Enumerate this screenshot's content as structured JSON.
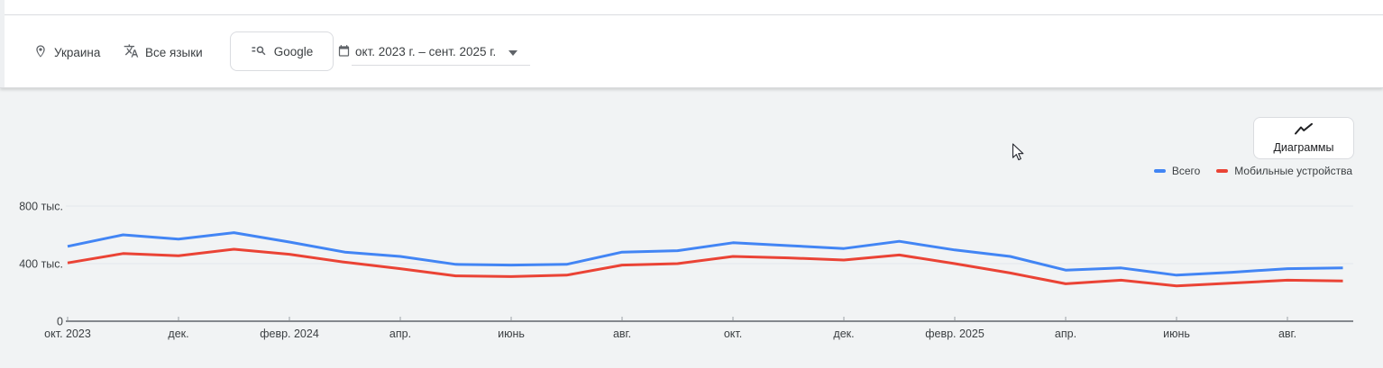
{
  "toolbar": {
    "location_label": "Украина",
    "language_label": "Все языки",
    "search_engine_label": "Google",
    "date_range_label": "окт. 2023 г. – сент. 2025 г."
  },
  "chart_section": {
    "charts_button_label": "Диаграммы",
    "legend": [
      {
        "label": "Всего",
        "color": "#4285f4"
      },
      {
        "label": "Мобильные устройства",
        "color": "#ea4335"
      }
    ]
  },
  "chart_data": {
    "type": "line",
    "title": "",
    "xlabel": "",
    "ylabel": "",
    "values_unit": "thousands (тыс.)",
    "ylim": [
      0,
      800
    ],
    "grid": "horizontal",
    "legend_position": "top-right",
    "x": [
      "2023-10",
      "2023-11",
      "2023-12",
      "2024-01",
      "2024-02",
      "2024-03",
      "2024-04",
      "2024-05",
      "2024-06",
      "2024-07",
      "2024-08",
      "2024-09",
      "2024-10",
      "2024-11",
      "2024-12",
      "2025-01",
      "2025-02",
      "2025-03",
      "2025-04",
      "2025-05",
      "2025-06",
      "2025-07",
      "2025-08",
      "2025-09"
    ],
    "x_tick_every": 2,
    "x_tick_labels": [
      "окт. 2023",
      "дек.",
      "февр. 2024",
      "апр.",
      "июнь",
      "авг.",
      "окт.",
      "дек.",
      "февр. 2025",
      "апр.",
      "июнь",
      "авг."
    ],
    "y_ticks": [
      {
        "value": 0,
        "label": "0"
      },
      {
        "value": 400,
        "label": "400 тыс."
      },
      {
        "value": 800,
        "label": "800 тыс."
      }
    ],
    "series": [
      {
        "name": "Всего",
        "color": "#4285f4",
        "values": [
          520,
          600,
          570,
          615,
          550,
          480,
          450,
          395,
          390,
          395,
          480,
          490,
          545,
          525,
          505,
          555,
          495,
          450,
          355,
          370,
          320,
          340,
          365,
          370
        ]
      },
      {
        "name": "Мобильные устройства",
        "color": "#ea4335",
        "values": [
          405,
          470,
          455,
          500,
          465,
          410,
          365,
          315,
          310,
          320,
          390,
          400,
          450,
          440,
          425,
          460,
          400,
          335,
          260,
          285,
          245,
          265,
          285,
          280
        ]
      }
    ]
  }
}
